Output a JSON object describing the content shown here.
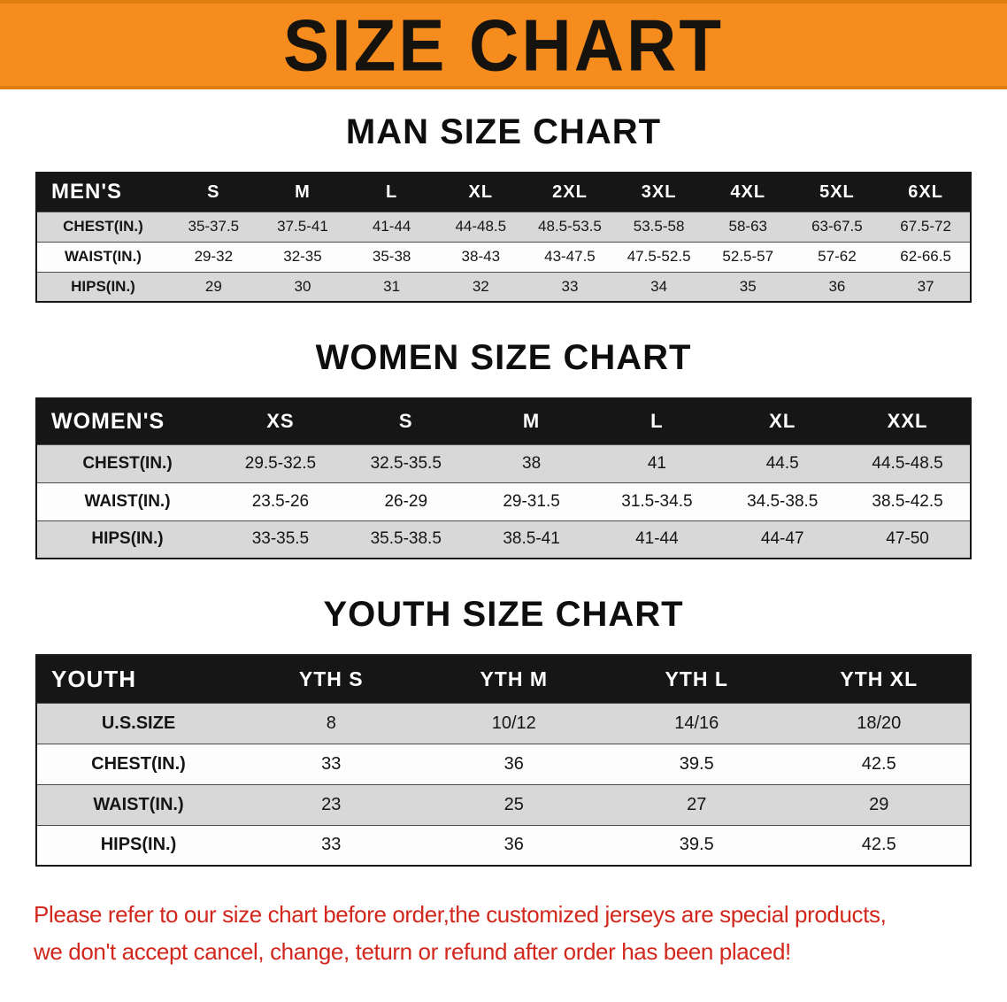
{
  "banner": {
    "title": "SIZE CHART"
  },
  "sections": [
    {
      "id": "men",
      "heading": "MAN SIZE CHART",
      "header": [
        "MEN'S",
        "S",
        "M",
        "L",
        "XL",
        "2XL",
        "3XL",
        "4XL",
        "5XL",
        "6XL"
      ],
      "rows": [
        {
          "label": "CHEST(IN.)",
          "values": [
            "35-37.5",
            "37.5-41",
            "41-44",
            "44-48.5",
            "48.5-53.5",
            "53.5-58",
            "58-63",
            "63-67.5",
            "67.5-72"
          ]
        },
        {
          "label": "WAIST(IN.)",
          "values": [
            "29-32",
            "32-35",
            "35-38",
            "38-43",
            "43-47.5",
            "47.5-52.5",
            "52.5-57",
            "57-62",
            "62-66.5"
          ]
        },
        {
          "label": "HIPS(IN.)",
          "values": [
            "29",
            "30",
            "31",
            "32",
            "33",
            "34",
            "35",
            "36",
            "37"
          ]
        }
      ]
    },
    {
      "id": "women",
      "heading": "WOMEN SIZE CHART",
      "header": [
        "WOMEN'S",
        "XS",
        "S",
        "M",
        "L",
        "XL",
        "XXL"
      ],
      "rows": [
        {
          "label": "CHEST(IN.)",
          "values": [
            "29.5-32.5",
            "32.5-35.5",
            "38",
            "41",
            "44.5",
            "44.5-48.5"
          ]
        },
        {
          "label": "WAIST(IN.)",
          "values": [
            "23.5-26",
            "26-29",
            "29-31.5",
            "31.5-34.5",
            "34.5-38.5",
            "38.5-42.5"
          ]
        },
        {
          "label": "HIPS(IN.)",
          "values": [
            "33-35.5",
            "35.5-38.5",
            "38.5-41",
            "41-44",
            "44-47",
            "47-50"
          ]
        }
      ]
    },
    {
      "id": "youth",
      "heading": "YOUTH SIZE CHART",
      "header": [
        "YOUTH",
        "YTH S",
        "YTH M",
        "YTH L",
        "YTH XL"
      ],
      "rows": [
        {
          "label": "U.S.SIZE",
          "values": [
            "8",
            "10/12",
            "14/16",
            "18/20"
          ]
        },
        {
          "label": "CHEST(IN.)",
          "values": [
            "33",
            "36",
            "39.5",
            "42.5"
          ]
        },
        {
          "label": "WAIST(IN.)",
          "values": [
            "23",
            "25",
            "27",
            "29"
          ]
        },
        {
          "label": "HIPS(IN.)",
          "values": [
            "33",
            "36",
            "39.5",
            "42.5"
          ]
        }
      ]
    }
  ],
  "footer": {
    "line1": "Please refer to our size chart before order,the customized jerseys are special products,",
    "line2": "we don't accept cancel, change, teturn or refund after order has been placed!"
  },
  "colors": {
    "banner_orange": "#f68c1e",
    "table_header_black": "#161616",
    "row_gray": "#d8d8d8",
    "row_white": "#fdfdfd",
    "notice_red": "#d2271d"
  }
}
